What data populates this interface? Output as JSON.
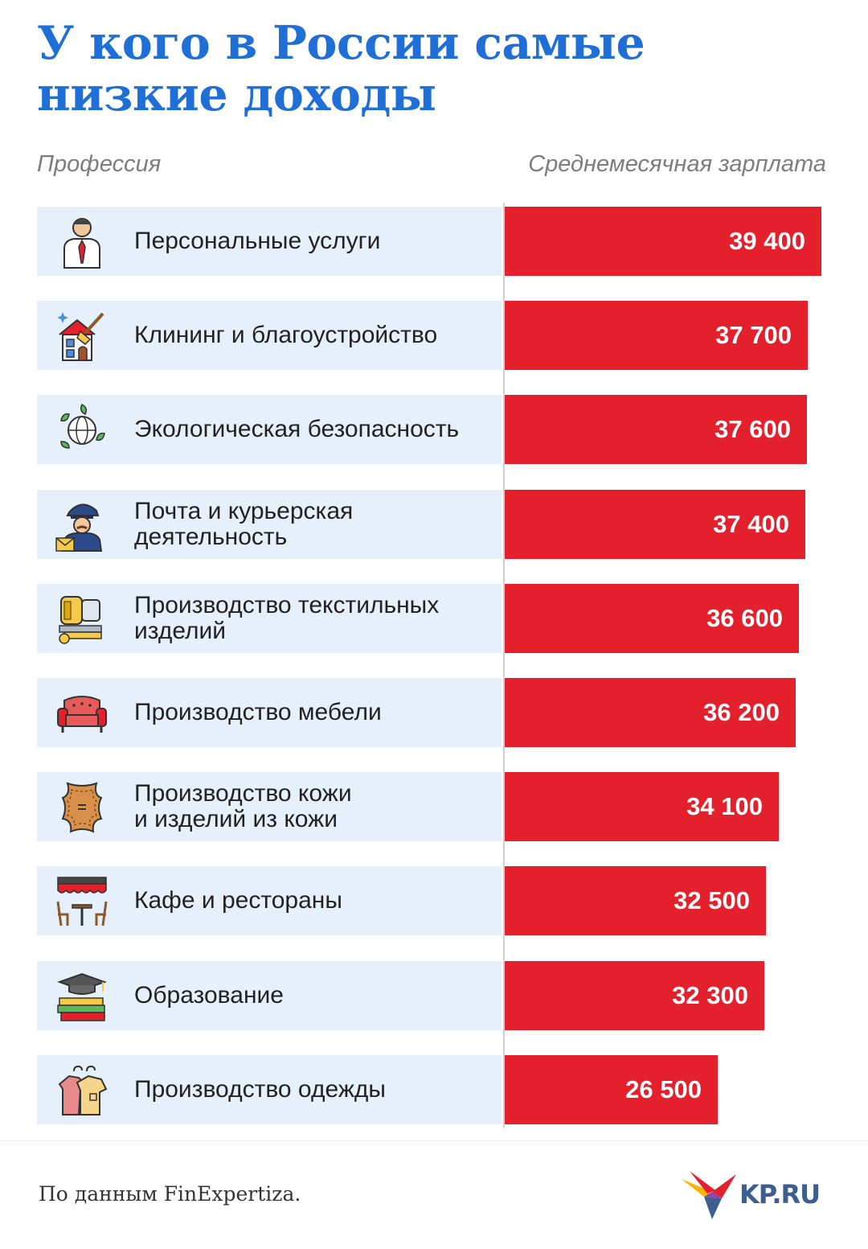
{
  "title": "У кого в России самые низкие доходы",
  "header": {
    "left": "Профессия",
    "right": "Среднемесячная зарплата"
  },
  "chart_data": {
    "type": "bar",
    "orientation": "horizontal",
    "categories": [
      "Персональные услуги",
      "Клининг и благоустройство",
      "Экологическая безопасность",
      "Почта и курьерская\nдеятельность",
      "Производство текстильных\nизделий",
      "Производство мебели",
      "Производство кожи\nи изделий из кожи",
      "Кафе и рестораны",
      "Образование",
      "Производство одежды"
    ],
    "values": [
      39400,
      37700,
      37600,
      37400,
      36600,
      36200,
      34100,
      32500,
      32300,
      26500
    ],
    "labels": [
      "39 400",
      "37 700",
      "37 600",
      "37 400",
      "36 600",
      "36 200",
      "34 100",
      "32 500",
      "32 300",
      "26 500"
    ],
    "icons": [
      "person-tie-icon",
      "house-cleaning-icon",
      "globe-leaves-icon",
      "postman-icon",
      "textile-machine-icon",
      "sofa-icon",
      "leather-hide-icon",
      "cafe-table-icon",
      "books-graduation-cap-icon",
      "clothes-hanger-icon"
    ],
    "bar_color": "#e3202b",
    "row_color": "#e6f0fa",
    "xlabel": "",
    "ylabel": "",
    "xlim": [
      0,
      40000
    ]
  },
  "footer": {
    "source": "По данным FinExpertiza.",
    "logo_text": "KP.RU"
  },
  "colors": {
    "title": "#1f6fd6",
    "header": "#7d7d7d",
    "logo_text": "#3c5f8f"
  }
}
